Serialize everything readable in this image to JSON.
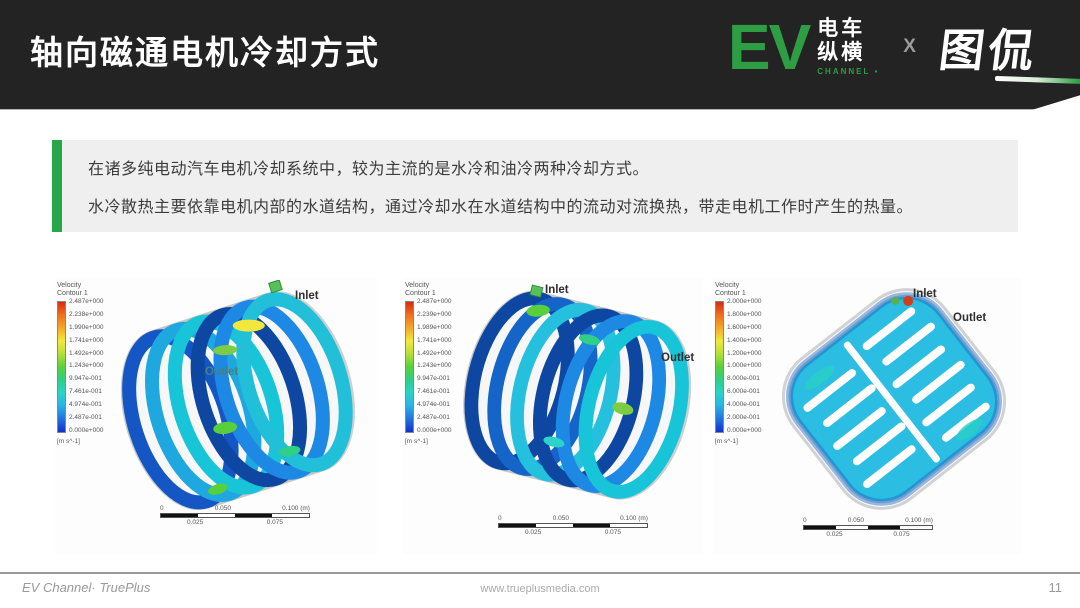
{
  "header": {
    "title": "轴向磁通电机冷却方式",
    "logo": {
      "ev": "EV",
      "brand_line1": "电车",
      "brand_line2": "纵横",
      "channel": "CHANNEL ▪",
      "separator": "X",
      "tukan": "图侃"
    }
  },
  "callout": {
    "line1": "在诸多纯电动汽车电机冷却系统中，较为主流的是水冷和油冷两种冷却方式。",
    "line2": "水冷散热主要依靠电机内部的水道结构，通过冷却水在水道结构中的流动对流换热，带走电机工作时产生的热量。"
  },
  "figures": [
    {
      "legend_title1": "Velocity",
      "legend_title2": "Contour 1",
      "unit": "[m s^-1]",
      "ticks": [
        "2.487e+000",
        "2.238e+000",
        "1.990e+000",
        "1.741e+000",
        "1.492e+000",
        "1.243e+000",
        "9.947e-001",
        "7.461e-001",
        "4.974e-001",
        "2.487e-001",
        "0.000e+000"
      ],
      "inlet_label": "Inlet",
      "outlet_label": "Outlet",
      "scale": {
        "t0": "0",
        "t1": "0.050",
        "t2": "0.100 (m)",
        "b0": "0.025",
        "b1": "0.075"
      }
    },
    {
      "legend_title1": "Velocity",
      "legend_title2": "Contour 1",
      "unit": "[m s^-1]",
      "ticks": [
        "2.487e+000",
        "2.239e+000",
        "1.989e+000",
        "1.741e+000",
        "1.492e+000",
        "1.243e+000",
        "9.947e-001",
        "7.461e-001",
        "4.974e-001",
        "2.487e-001",
        "0.000e+000"
      ],
      "inlet_label": "Inlet",
      "outlet_label": "Outlet",
      "scale": {
        "t0": "0",
        "t1": "0.050",
        "t2": "0.100 (m)",
        "b0": "0.025",
        "b1": "0.075"
      }
    },
    {
      "legend_title1": "Velocity",
      "legend_title2": "Contour 1",
      "unit": "[m s^-1]",
      "ticks": [
        "2.000e+000",
        "1.800e+000",
        "1.600e+000",
        "1.400e+000",
        "1.200e+000",
        "1.000e+000",
        "8.000e-001",
        "6.000e-001",
        "4.000e-001",
        "2.000e-001",
        "0.000e+000"
      ],
      "inlet_label": "Inlet",
      "outlet_label": "Outlet",
      "scale": {
        "t0": "0",
        "t1": "0.050",
        "t2": "0.100 (m)",
        "b0": "0.025",
        "b1": "0.075"
      }
    }
  ],
  "footer": {
    "left": "EV Channel· TruePlus",
    "center": "www.trueplusmedia.com",
    "page": "11"
  },
  "colors": {
    "accent_green": "#2e9e44",
    "callout_bar_green": "#27a749",
    "header_bg": "#232323",
    "callout_bg": "#efefef"
  }
}
